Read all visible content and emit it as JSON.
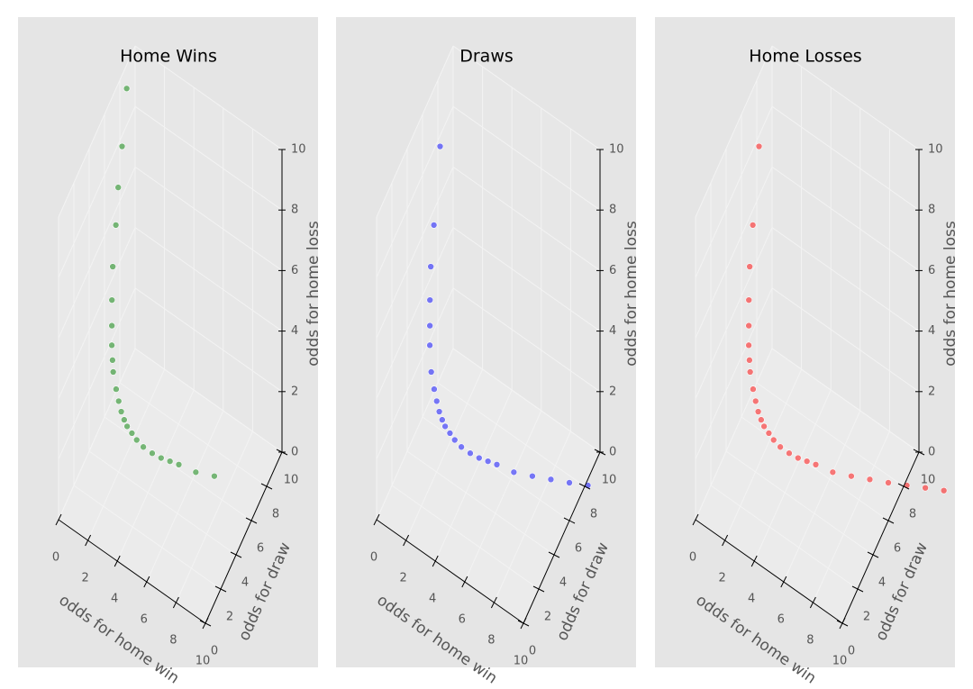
{
  "chart_data": [
    {
      "type": "scatter3d",
      "title": "Home Wins",
      "color": "#008000",
      "xlabel": "odds for home win",
      "ylabel": "odds for draw",
      "zlabel": "odds for home loss",
      "xlim": [
        0,
        10
      ],
      "ylim": [
        0,
        10
      ],
      "zlim": [
        0,
        10
      ],
      "xticks": [
        0,
        2,
        4,
        6,
        8,
        10
      ],
      "yticks": [
        0,
        2,
        4,
        6,
        8,
        10
      ],
      "zticks": [
        0,
        2,
        4,
        6,
        8,
        10
      ],
      "x": [
        1.05,
        1.1,
        1.15,
        1.2,
        1.25,
        1.3,
        1.35,
        1.4,
        1.5,
        1.6,
        1.7,
        1.8,
        1.9,
        2.0,
        2.2,
        2.4,
        2.6,
        2.8,
        3.0,
        3.3,
        3.6,
        4.0,
        4.5,
        5.0,
        5.5,
        6.0,
        7.0,
        8.0
      ],
      "y": [
        13,
        10,
        8.5,
        7.5,
        6.5,
        5.8,
        5.2,
        4.8,
        4.2,
        3.9,
        3.7,
        3.5,
        3.4,
        3.3,
        3.3,
        3.25,
        3.2,
        3.2,
        3.2,
        3.25,
        3.3,
        3.4,
        3.6,
        3.8,
        4.0,
        4.2,
        4.5,
        5.0
      ],
      "z": [
        29,
        21,
        17,
        13,
        11,
        9.5,
        8.5,
        7.5,
        6.5,
        5.6,
        4.9,
        4.4,
        4.0,
        3.7,
        3.2,
        2.9,
        2.65,
        2.45,
        2.3,
        2.15,
        2.0,
        1.85,
        1.7,
        1.6,
        1.55,
        1.5,
        1.42,
        1.35
      ]
    },
    {
      "type": "scatter3d",
      "title": "Draws",
      "color": "#0000ff",
      "xlabel": "odds for home win",
      "ylabel": "odds for draw",
      "zlabel": "odds for home loss",
      "xlim": [
        0,
        10
      ],
      "ylim": [
        0,
        10
      ],
      "zlim": [
        0,
        10
      ],
      "xticks": [
        0,
        2,
        4,
        6,
        8,
        10
      ],
      "yticks": [
        0,
        2,
        4,
        6,
        8,
        10
      ],
      "zticks": [
        0,
        2,
        4,
        6,
        8,
        10
      ],
      "x": [
        1.1,
        1.2,
        1.3,
        1.4,
        1.5,
        1.6,
        1.7,
        1.8,
        2.0,
        2.2,
        2.4,
        2.6,
        2.8,
        3.0,
        3.3,
        3.6,
        4.0,
        4.5,
        5.0,
        5.5,
        6.0,
        7.0,
        8.0,
        9.0,
        10.0,
        11.0
      ],
      "y": [
        10,
        7.5,
        5.8,
        4.8,
        4.2,
        3.9,
        3.7,
        3.5,
        3.3,
        3.3,
        3.25,
        3.2,
        3.2,
        3.2,
        3.25,
        3.3,
        3.4,
        3.6,
        3.8,
        4.0,
        4.2,
        4.5,
        5.0,
        5.5,
        6.0,
        6.5
      ],
      "z": [
        21,
        13,
        9.5,
        7.5,
        6.5,
        5.6,
        4.9,
        4.4,
        3.7,
        3.2,
        2.9,
        2.65,
        2.45,
        2.3,
        2.15,
        2.0,
        1.85,
        1.7,
        1.6,
        1.55,
        1.5,
        1.42,
        1.35,
        1.3,
        1.25,
        1.22
      ]
    },
    {
      "type": "scatter3d",
      "title": "Home Losses",
      "color": "#ff0000",
      "xlabel": "odds for home win",
      "ylabel": "odds for draw",
      "zlabel": "odds for home loss",
      "xlim": [
        0,
        10
      ],
      "ylim": [
        0,
        10
      ],
      "zlim": [
        0,
        10
      ],
      "xticks": [
        0,
        2,
        4,
        6,
        8,
        10
      ],
      "yticks": [
        0,
        2,
        4,
        6,
        8,
        10
      ],
      "zticks": [
        0,
        2,
        4,
        6,
        8,
        10
      ],
      "x": [
        1.2,
        1.3,
        1.4,
        1.5,
        1.6,
        1.7,
        1.8,
        1.9,
        2.0,
        2.2,
        2.4,
        2.6,
        2.8,
        3.0,
        3.3,
        3.6,
        4.0,
        4.5,
        5.0,
        5.5,
        6.0,
        7.0,
        8.0,
        9.0,
        10.0,
        11.0,
        12.0,
        13.0,
        15.0
      ],
      "y": [
        7.5,
        5.8,
        4.8,
        4.2,
        3.9,
        3.7,
        3.5,
        3.4,
        3.3,
        3.3,
        3.25,
        3.2,
        3.2,
        3.2,
        3.25,
        3.3,
        3.4,
        3.6,
        3.8,
        4.0,
        4.2,
        4.5,
        5.0,
        5.5,
        6.0,
        6.5,
        7.0,
        7.5,
        8.0
      ],
      "z": [
        13,
        9.5,
        7.5,
        6.5,
        5.6,
        4.9,
        4.4,
        4.0,
        3.7,
        3.2,
        2.9,
        2.65,
        2.45,
        2.3,
        2.15,
        2.0,
        1.85,
        1.7,
        1.6,
        1.55,
        1.5,
        1.42,
        1.35,
        1.3,
        1.25,
        1.22,
        1.2,
        1.17,
        1.15
      ]
    }
  ]
}
